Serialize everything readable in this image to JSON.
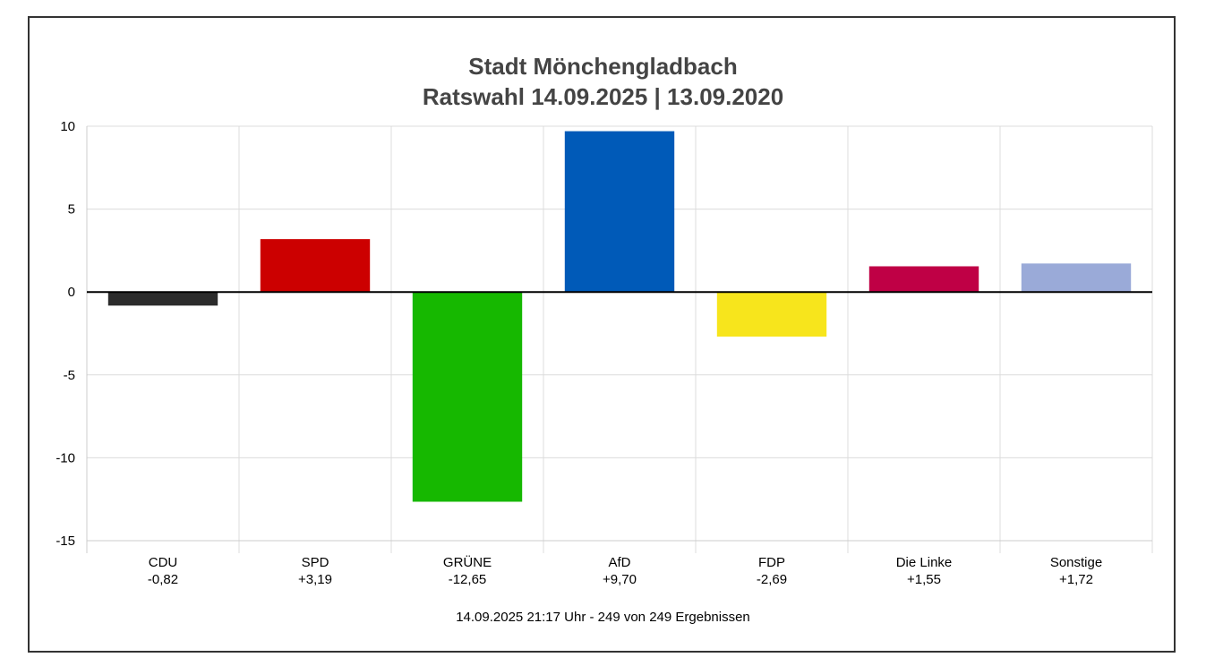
{
  "chart_data": {
    "type": "bar",
    "title": "Stadt Mönchengladbach",
    "subtitle": "Ratswahl 14.09.2025  | 13.09.2020",
    "categories": [
      "CDU",
      "SPD",
      "GRÜNE",
      "AfD",
      "FDP",
      "Die Linke",
      "Sonstige"
    ],
    "value_labels": [
      "-0,82",
      "+3,19",
      "-12,65",
      "+9,70",
      "-2,69",
      "+1,55",
      "+1,72"
    ],
    "values": [
      -0.82,
      3.19,
      -12.65,
      9.7,
      -2.69,
      1.55,
      1.72
    ],
    "colors": [
      "#2b2b2b",
      "#cc0000",
      "#16b800",
      "#005ab8",
      "#f7e51c",
      "#bf0045",
      "#9aaad8"
    ],
    "ylim": [
      -15,
      10
    ],
    "yticks": [
      10,
      5,
      0,
      -5,
      -10,
      -15
    ],
    "grid": true,
    "xlabel": "",
    "ylabel": "",
    "footer": "14.09.2025 21:17 Uhr - 249 von 249 Ergebnissen"
  }
}
